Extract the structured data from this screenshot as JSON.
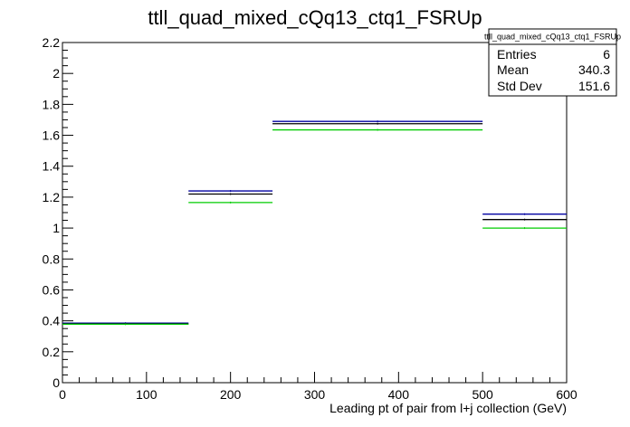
{
  "chart_data": {
    "type": "bar",
    "title": "ttll_quad_mixed_cQq13_ctq1_FSRUp",
    "xlabel": "Leading pt of pair from l+j collection (GeV)",
    "ylabel": "",
    "xlim": [
      0,
      600
    ],
    "ylim": [
      0,
      2.2
    ],
    "x_ticks": [
      0,
      100,
      200,
      300,
      400,
      500,
      600
    ],
    "y_ticks": [
      0,
      0.2,
      0.4,
      0.6,
      0.8,
      1,
      1.2,
      1.4,
      1.6,
      1.8,
      2,
      2.2
    ],
    "x_tick_labels": [
      "0",
      "100",
      "200",
      "300",
      "400",
      "500",
      "600"
    ],
    "y_tick_labels": [
      "0",
      "0.2",
      "0.4",
      "0.6",
      "0.8",
      "1",
      "1.2",
      "1.4",
      "1.6",
      "1.8",
      "2",
      "2.2"
    ],
    "bin_edges": [
      0,
      150,
      250,
      500,
      600
    ],
    "series": [
      {
        "color": "#0000a0",
        "values": [
          0.385,
          1.24,
          1.69,
          1.09
        ]
      },
      {
        "color": "#000000",
        "values": [
          0.38,
          1.22,
          1.675,
          1.055
        ]
      },
      {
        "color": "#00cc00",
        "values": [
          0.378,
          1.165,
          1.635,
          1.0
        ]
      }
    ],
    "grid": false,
    "legend": "none",
    "stats_box": {
      "title": "ttll_quad_mixed_cQq13_ctq1_FSRUp",
      "position": "top-right",
      "rows": [
        {
          "label": "Entries",
          "value": "6"
        },
        {
          "label": "Mean",
          "value": "340.3"
        },
        {
          "label": "Std Dev",
          "value": "151.6"
        }
      ]
    }
  }
}
